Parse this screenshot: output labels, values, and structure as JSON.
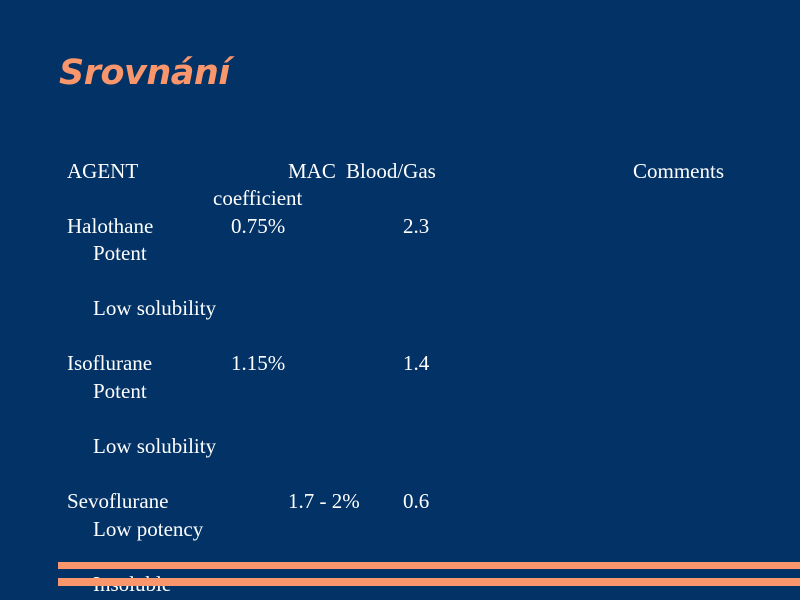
{
  "slide": {
    "title": "Srovnání",
    "table": {
      "headers": {
        "agent": "AGENT",
        "mac": "MAC",
        "blood_gas_line1": "Blood/Gas",
        "blood_gas_line2": "coefficient",
        "comments": "Comments"
      },
      "rows": [
        {
          "agent": "Halothane",
          "mac": "0.75%",
          "blood_gas": "2.3",
          "comments": [
            "Potent",
            "Low solubility"
          ]
        },
        {
          "agent": "Isoflurane",
          "mac": "1.15%",
          "blood_gas": "1.4",
          "comments": [
            "Potent",
            "Low solubility"
          ]
        },
        {
          "agent": "Sevoflurane",
          "mac": "1.7 - 2%",
          "blood_gas": "0.6",
          "comments": [
            "Low potency",
            "Insoluble"
          ]
        }
      ]
    },
    "colors": {
      "background": "#033366",
      "accent": "#F9966B",
      "text": "#FFFFFF"
    }
  }
}
